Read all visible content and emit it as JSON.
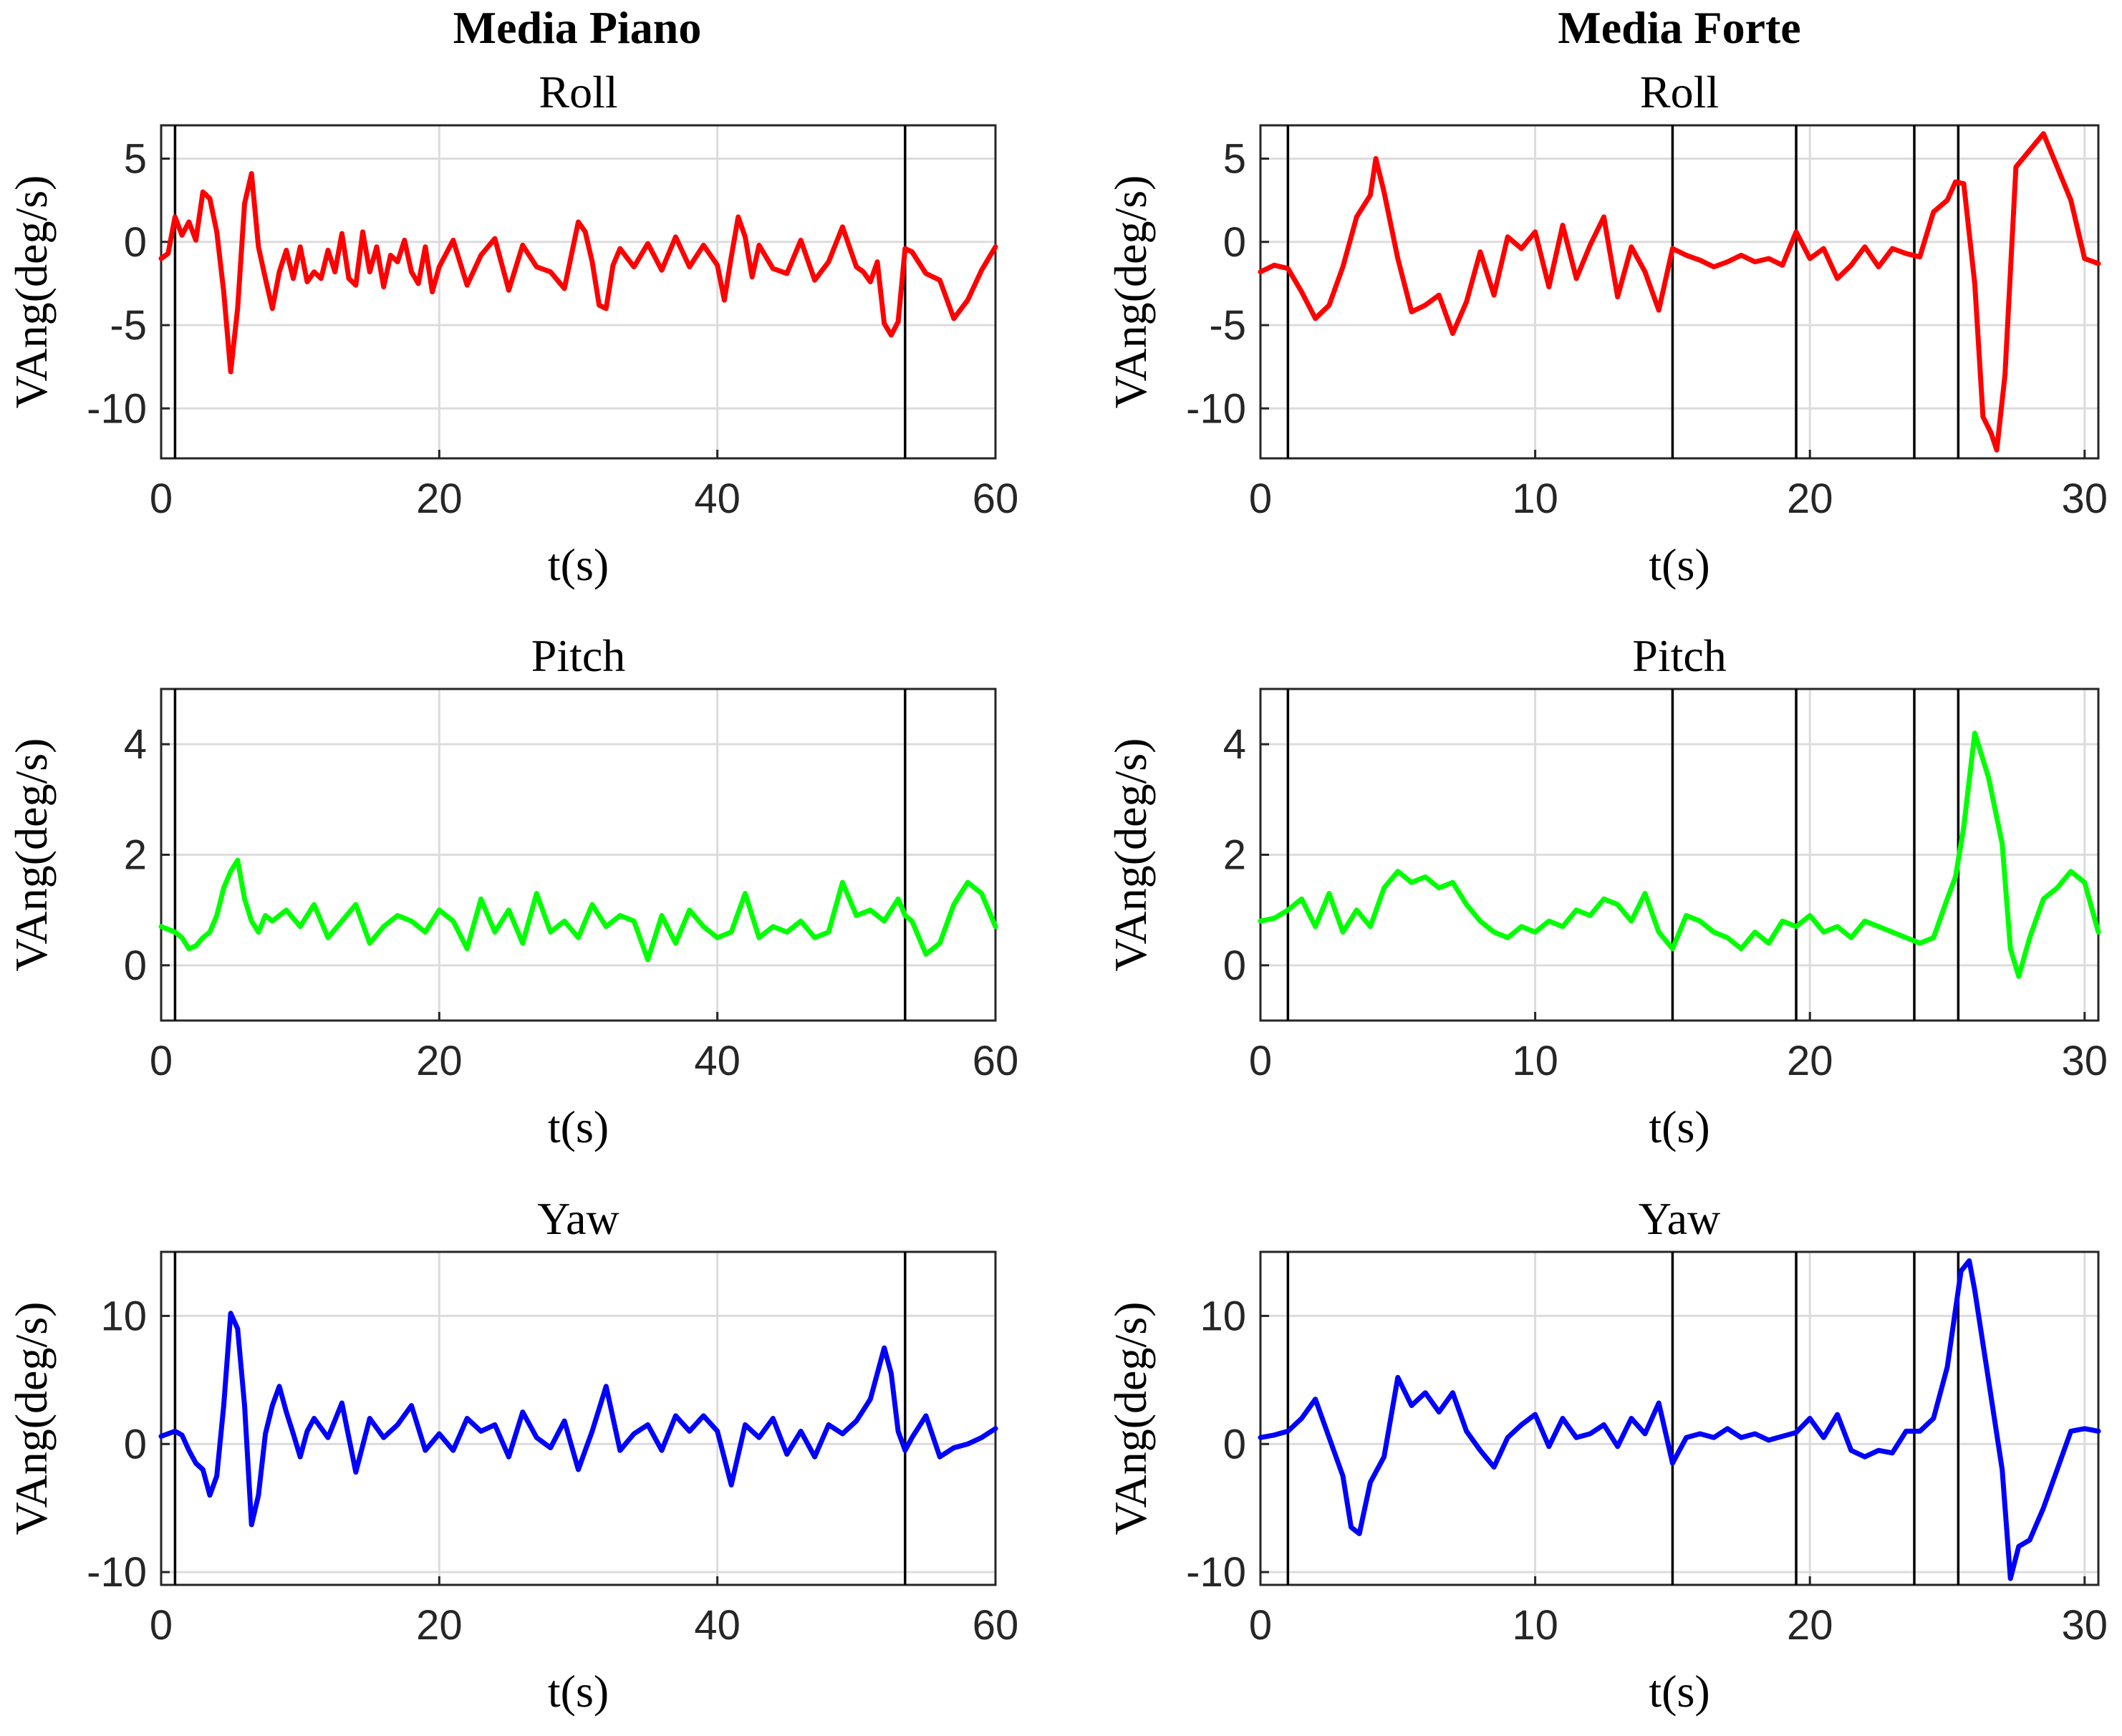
{
  "figure": {
    "column_titles": [
      "Media Piano",
      "Media Forte"
    ]
  },
  "chart_data": [
    {
      "type": "line",
      "panel": "Media Piano - Roll",
      "title": "Roll",
      "xlabel": "t(s)",
      "ylabel": "VAng(deg/s)",
      "xlim": [
        0,
        60
      ],
      "ylim": [
        -13,
        7
      ],
      "xticks": [
        0,
        20,
        40,
        60
      ],
      "yticks": [
        -10,
        -5,
        0,
        5
      ],
      "grid": true,
      "color": "#ff0000",
      "vlines": [
        1,
        53.5
      ],
      "series": [
        {
          "x": [
            0,
            0.5,
            1,
            1.5,
            2,
            2.5,
            3,
            3.5,
            4,
            4.5,
            5,
            5.5,
            6,
            6.5,
            7,
            7.5,
            8,
            8.5,
            9,
            9.5,
            10,
            10.5,
            11,
            11.5,
            12,
            12.5,
            13,
            13.5,
            14,
            14.5,
            15,
            15.5,
            16,
            16.5,
            17,
            17.5,
            18,
            18.5,
            19,
            19.5,
            20,
            21,
            22,
            23,
            24,
            25,
            26,
            27,
            28,
            29,
            30,
            30.5,
            31,
            31.5,
            32,
            32.5,
            33,
            34,
            35,
            36,
            37,
            38,
            39,
            40,
            40.5,
            41,
            41.5,
            42,
            42.5,
            43,
            44,
            45,
            46,
            47,
            48,
            49,
            50,
            50.5,
            51,
            51.5,
            52,
            52.5,
            53,
            53.5,
            54,
            55,
            56,
            57,
            58,
            59,
            60
          ],
          "values": [
            -1,
            -0.7,
            1.5,
            0.4,
            1.2,
            0.1,
            3,
            2.6,
            0.6,
            -3,
            -7.8,
            -4,
            2.3,
            4.1,
            -0.3,
            -2.2,
            -4,
            -1.8,
            -0.5,
            -2.2,
            -0.3,
            -2.4,
            -1.8,
            -2.2,
            -0.5,
            -1.8,
            0.5,
            -2.2,
            -2.6,
            0.6,
            -1.8,
            -0.3,
            -2.7,
            -0.8,
            -1.2,
            0.1,
            -1.8,
            -2.5,
            -0.3,
            -3,
            -1.5,
            0.1,
            -2.6,
            -0.8,
            0.2,
            -2.9,
            -0.2,
            -1.5,
            -1.8,
            -2.8,
            1.2,
            0.6,
            -1.2,
            -3.8,
            -4,
            -1.4,
            -0.4,
            -1.5,
            -0.1,
            -1.7,
            0.3,
            -1.5,
            -0.2,
            -1.4,
            -3.5,
            -0.9,
            1.5,
            0.3,
            -2.1,
            -0.2,
            -1.6,
            -1.9,
            0.1,
            -2.3,
            -1.2,
            0.9,
            -1.5,
            -1.8,
            -2.4,
            -1.2,
            -4.9,
            -5.6,
            -4.8,
            -0.4,
            -0.6,
            -1.9,
            -2.3,
            -4.6,
            -3.5,
            -1.7,
            -0.3
          ]
        }
      ]
    },
    {
      "type": "line",
      "panel": "Media Forte - Roll",
      "title": "Roll",
      "xlabel": "t(s)",
      "ylabel": "VAng(deg/s)",
      "xlim": [
        0,
        30.5
      ],
      "ylim": [
        -13,
        7
      ],
      "xticks": [
        0,
        10,
        20,
        30
      ],
      "yticks": [
        -10,
        -5,
        0,
        5
      ],
      "grid": true,
      "color": "#ff0000",
      "vlines": [
        1,
        15,
        19.5,
        23.8,
        25.4
      ],
      "series": [
        {
          "x": [
            0,
            0.5,
            1,
            1.5,
            2,
            2.5,
            3,
            3.5,
            4,
            4.2,
            4.5,
            5,
            5.5,
            6,
            6.5,
            7,
            7.5,
            8,
            8.5,
            9,
            9.5,
            10,
            10.5,
            11,
            11.5,
            12,
            12.5,
            13,
            13.5,
            14,
            14.5,
            15,
            15.5,
            16,
            16.5,
            17,
            17.5,
            18,
            18.5,
            19,
            19.5,
            20,
            20.5,
            21,
            21.5,
            22,
            22.5,
            23,
            23.5,
            24,
            24.5,
            25,
            25.3,
            25.6,
            26,
            26.3,
            26.6,
            26.8,
            27.1,
            27.5,
            28,
            28.5,
            29,
            29.5,
            30,
            30.5
          ],
          "values": [
            -1.8,
            -1.4,
            -1.6,
            -3,
            -4.6,
            -3.8,
            -1.5,
            1.5,
            2.8,
            5,
            3,
            -1,
            -4.2,
            -3.8,
            -3.2,
            -5.5,
            -3.6,
            -0.6,
            -3.2,
            0.3,
            -0.4,
            0.6,
            -2.7,
            1,
            -2.2,
            -0.2,
            1.5,
            -3.3,
            -0.3,
            -1.8,
            -4.1,
            -0.4,
            -0.8,
            -1.1,
            -1.5,
            -1.2,
            -0.8,
            -1.2,
            -1,
            -1.4,
            0.6,
            -1,
            -0.4,
            -2.2,
            -1.4,
            -0.3,
            -1.5,
            -0.4,
            -0.7,
            -0.9,
            1.8,
            2.5,
            3.6,
            3.5,
            -2.5,
            -10.5,
            -11.5,
            -12.5,
            -8,
            4.5,
            5.5,
            6.5,
            4.5,
            2.5,
            -1,
            -1.3
          ]
        }
      ]
    },
    {
      "type": "line",
      "panel": "Media Piano - Pitch",
      "title": "Pitch",
      "xlabel": "t(s)",
      "ylabel": "VAng(deg/s)",
      "xlim": [
        0,
        60
      ],
      "ylim": [
        -1,
        5
      ],
      "xticks": [
        0,
        20,
        40,
        60
      ],
      "yticks": [
        0,
        2,
        4
      ],
      "grid": true,
      "color": "#00ff00",
      "vlines": [
        1,
        53.5
      ],
      "series": [
        {
          "x": [
            0,
            1,
            1.5,
            2,
            2.5,
            3,
            3.5,
            4,
            4.5,
            5,
            5.5,
            6,
            6.5,
            7,
            7.5,
            8,
            9,
            10,
            11,
            12,
            13,
            14,
            15,
            16,
            17,
            18,
            19,
            20,
            21,
            22,
            23,
            24,
            25,
            26,
            27,
            28,
            29,
            30,
            31,
            32,
            33,
            34,
            35,
            36,
            37,
            38,
            39,
            40,
            41,
            42,
            43,
            44,
            45,
            46,
            47,
            48,
            49,
            50,
            51,
            52,
            53,
            53.5,
            54,
            55,
            55.5,
            56,
            57,
            58,
            59,
            60
          ],
          "values": [
            0.7,
            0.6,
            0.5,
            0.3,
            0.35,
            0.5,
            0.6,
            0.9,
            1.4,
            1.7,
            1.9,
            1.2,
            0.8,
            0.6,
            0.9,
            0.8,
            1,
            0.7,
            1.1,
            0.5,
            0.8,
            1.1,
            0.4,
            0.7,
            0.9,
            0.8,
            0.6,
            1,
            0.8,
            0.3,
            1.2,
            0.6,
            1,
            0.4,
            1.3,
            0.6,
            0.8,
            0.5,
            1.1,
            0.7,
            0.9,
            0.8,
            0.1,
            0.9,
            0.4,
            1,
            0.7,
            0.5,
            0.6,
            1.3,
            0.5,
            0.7,
            0.6,
            0.8,
            0.5,
            0.6,
            1.5,
            0.9,
            1,
            0.8,
            1.2,
            0.9,
            0.8,
            0.2,
            0.3,
            0.4,
            1.1,
            1.5,
            1.3,
            0.7
          ]
        }
      ]
    },
    {
      "type": "line",
      "panel": "Media Forte - Pitch",
      "title": "Pitch",
      "xlabel": "t(s)",
      "ylabel": "VAng(deg/s)",
      "xlim": [
        0,
        30.5
      ],
      "ylim": [
        -1,
        5
      ],
      "xticks": [
        0,
        10,
        20,
        30
      ],
      "yticks": [
        0,
        2,
        4
      ],
      "grid": true,
      "color": "#00ff00",
      "vlines": [
        1,
        15,
        19.5,
        23.8,
        25.4
      ],
      "series": [
        {
          "x": [
            0,
            0.5,
            1,
            1.5,
            2,
            2.5,
            3,
            3.5,
            4,
            4.5,
            5,
            5.5,
            6,
            6.5,
            7,
            7.5,
            8,
            8.5,
            9,
            9.5,
            10,
            10.5,
            11,
            11.5,
            12,
            12.5,
            13,
            13.5,
            14,
            14.5,
            15,
            15.5,
            16,
            16.5,
            17,
            17.5,
            18,
            18.5,
            19,
            19.5,
            20,
            20.5,
            21,
            21.5,
            22,
            22.5,
            23,
            23.5,
            24,
            24.5,
            25,
            25.3,
            25.6,
            26,
            26.5,
            27,
            27.3,
            27.6,
            28,
            28.5,
            29,
            29.5,
            30,
            30.5
          ],
          "values": [
            0.8,
            0.85,
            1,
            1.2,
            0.7,
            1.3,
            0.6,
            1,
            0.7,
            1.4,
            1.7,
            1.5,
            1.6,
            1.4,
            1.5,
            1.1,
            0.8,
            0.6,
            0.5,
            0.7,
            0.6,
            0.8,
            0.7,
            1,
            0.9,
            1.2,
            1.1,
            0.8,
            1.3,
            0.6,
            0.3,
            0.9,
            0.8,
            0.6,
            0.5,
            0.3,
            0.6,
            0.4,
            0.8,
            0.7,
            0.9,
            0.6,
            0.7,
            0.5,
            0.8,
            0.7,
            0.6,
            0.5,
            0.4,
            0.5,
            1.2,
            1.6,
            2.5,
            4.2,
            3.4,
            2.2,
            0.3,
            -0.2,
            0.5,
            1.2,
            1.4,
            1.7,
            1.5,
            0.6
          ]
        }
      ]
    },
    {
      "type": "line",
      "panel": "Media Piano - Yaw",
      "title": "Yaw",
      "xlabel": "t(s)",
      "ylabel": "VAng(deg/s)",
      "xlim": [
        0,
        60
      ],
      "ylim": [
        -11,
        15
      ],
      "xticks": [
        0,
        20,
        40,
        60
      ],
      "yticks": [
        -10,
        0,
        10
      ],
      "grid": true,
      "color": "#0000ff",
      "vlines": [
        1,
        53.5
      ],
      "series": [
        {
          "x": [
            0,
            1,
            1.5,
            2,
            2.5,
            3,
            3.5,
            4,
            4.5,
            5,
            5.5,
            6,
            6.5,
            7,
            7.5,
            8,
            8.5,
            9,
            9.5,
            10,
            10.5,
            11,
            12,
            13,
            14,
            15,
            16,
            17,
            18,
            19,
            20,
            21,
            22,
            23,
            24,
            25,
            26,
            27,
            28,
            29,
            30,
            31,
            32,
            33,
            34,
            35,
            36,
            37,
            38,
            39,
            40,
            41,
            42,
            43,
            44,
            45,
            46,
            47,
            48,
            49,
            50,
            51,
            52,
            52.5,
            53,
            53.5,
            54,
            55,
            56,
            57,
            58,
            59,
            60
          ],
          "values": [
            0.6,
            1,
            0.7,
            -0.5,
            -1.5,
            -2,
            -4,
            -2.5,
            3,
            10.2,
            9,
            3,
            -6.3,
            -4,
            0.8,
            3,
            4.5,
            2.5,
            0.8,
            -1,
            1,
            2,
            0.5,
            3.2,
            -2.2,
            2,
            0.5,
            1.5,
            3,
            -0.5,
            0.8,
            -0.5,
            2,
            1,
            1.5,
            -1,
            2.5,
            0.5,
            -0.3,
            1.8,
            -2,
            1,
            4.5,
            -0.5,
            0.8,
            1.5,
            -0.5,
            2.2,
            1,
            2.2,
            1,
            -3.2,
            1.5,
            0.5,
            2,
            -0.8,
            1,
            -1,
            1.5,
            0.8,
            1.8,
            3.5,
            7.5,
            5.5,
            1,
            -0.5,
            0.5,
            2.2,
            -1,
            -0.3,
            0,
            0.5,
            1.2
          ]
        }
      ]
    },
    {
      "type": "line",
      "panel": "Media Forte - Yaw",
      "title": "Yaw",
      "xlabel": "t(s)",
      "ylabel": "VAng(deg/s)",
      "xlim": [
        0,
        30.5
      ],
      "ylim": [
        -11,
        15
      ],
      "xticks": [
        0,
        10,
        20,
        30
      ],
      "yticks": [
        -10,
        0,
        10
      ],
      "grid": true,
      "color": "#0000ff",
      "vlines": [
        1,
        15,
        19.5,
        23.8,
        25.4
      ],
      "series": [
        {
          "x": [
            0,
            0.5,
            1,
            1.5,
            2,
            2.5,
            3,
            3.3,
            3.6,
            4,
            4.5,
            5,
            5.5,
            6,
            6.5,
            7,
            7.5,
            8,
            8.5,
            9,
            9.5,
            10,
            10.5,
            11,
            11.5,
            12,
            12.5,
            13,
            13.5,
            14,
            14.5,
            15,
            15.5,
            16,
            16.5,
            17,
            17.5,
            18,
            18.5,
            19,
            19.5,
            20,
            20.5,
            21,
            21.5,
            22,
            22.5,
            23,
            23.5,
            24,
            24.5,
            25,
            25.5,
            25.8,
            26,
            26.5,
            27,
            27.3,
            27.6,
            28,
            28.5,
            29,
            29.5,
            30,
            30.5
          ],
          "values": [
            0.5,
            0.7,
            1,
            2,
            3.5,
            0.5,
            -2.5,
            -6.5,
            -7,
            -3,
            -1,
            5.2,
            3,
            4,
            2.5,
            4,
            1,
            -0.5,
            -1.8,
            0.5,
            1.5,
            2.3,
            -0.2,
            2,
            0.5,
            0.8,
            1.5,
            -0.2,
            2,
            0.8,
            3.2,
            -1.5,
            0.5,
            0.8,
            0.5,
            1.2,
            0.5,
            0.8,
            0.3,
            0.6,
            0.9,
            2,
            0.5,
            2.3,
            -0.5,
            -1,
            -0.5,
            -0.7,
            1,
            1,
            2,
            6,
            13.5,
            14.3,
            12,
            5,
            -2,
            -10.5,
            -8,
            -7.5,
            -5,
            -2,
            1,
            1.2,
            1
          ]
        }
      ]
    }
  ]
}
